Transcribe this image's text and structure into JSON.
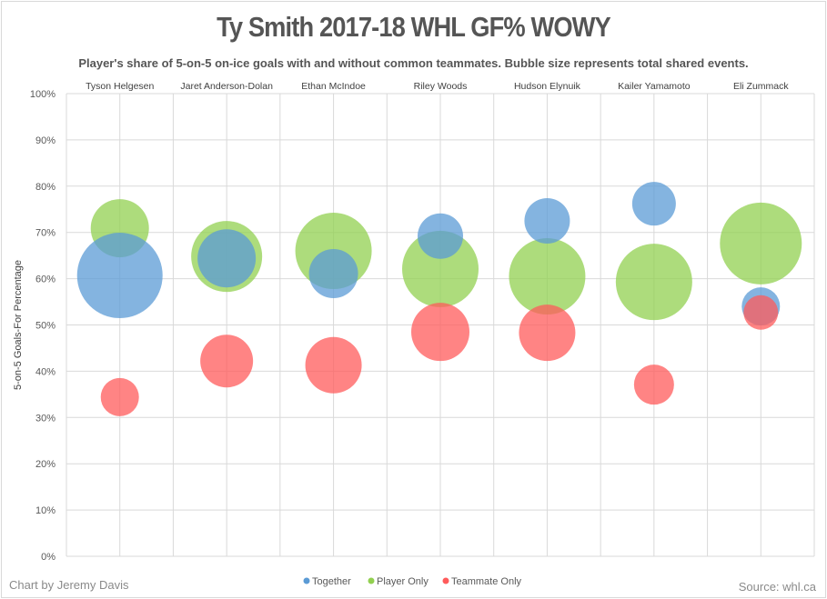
{
  "chart_data": {
    "type": "scatter",
    "subtype": "bubble",
    "title": "Ty Smith 2017-18 WHL GF% WOWY",
    "subtitle": "Player's share of 5-on-5 on-ice goals with and without common teammates. Bubble size represents total shared events.",
    "ylabel": "5-on-5 Goals-For  Percentage",
    "xlabel": "",
    "ylim": [
      0,
      100
    ],
    "yticks": [
      "0%",
      "10%",
      "20%",
      "30%",
      "40%",
      "50%",
      "60%",
      "70%",
      "80%",
      "90%",
      "100%"
    ],
    "categories": [
      "Tyson Helgesen",
      "Jaret Anderson-Dolan",
      "Ethan McIndoe",
      "Riley Woods",
      "Hudson Elynuik",
      "Kailer Yamamoto",
      "Eli Zummack"
    ],
    "grid": true,
    "legend_position": "bottom",
    "series": [
      {
        "name": "Together",
        "color": "#5b9bd5",
        "values": [
          60.7,
          64.4,
          61.1,
          69.2,
          72.5,
          76.2,
          54.0
        ],
        "sizes": [
          47,
          32,
          27,
          25,
          25,
          24,
          21
        ]
      },
      {
        "name": "Player Only",
        "color": "#92d050",
        "values": [
          70.9,
          64.8,
          66.0,
          62.1,
          60.5,
          59.3,
          67.6
        ],
        "sizes": [
          32,
          39,
          42,
          42,
          42,
          42,
          45
        ]
      },
      {
        "name": "Teammate Only",
        "color": "#ff5b5b",
        "values": [
          34.4,
          42.2,
          41.3,
          48.5,
          48.3,
          37.1,
          52.7
        ],
        "sizes": [
          21,
          29,
          31,
          32,
          31,
          22,
          19
        ]
      }
    ]
  },
  "footer": {
    "credit": "Chart by Jeremy Davis",
    "source": "Source: whl.ca"
  }
}
